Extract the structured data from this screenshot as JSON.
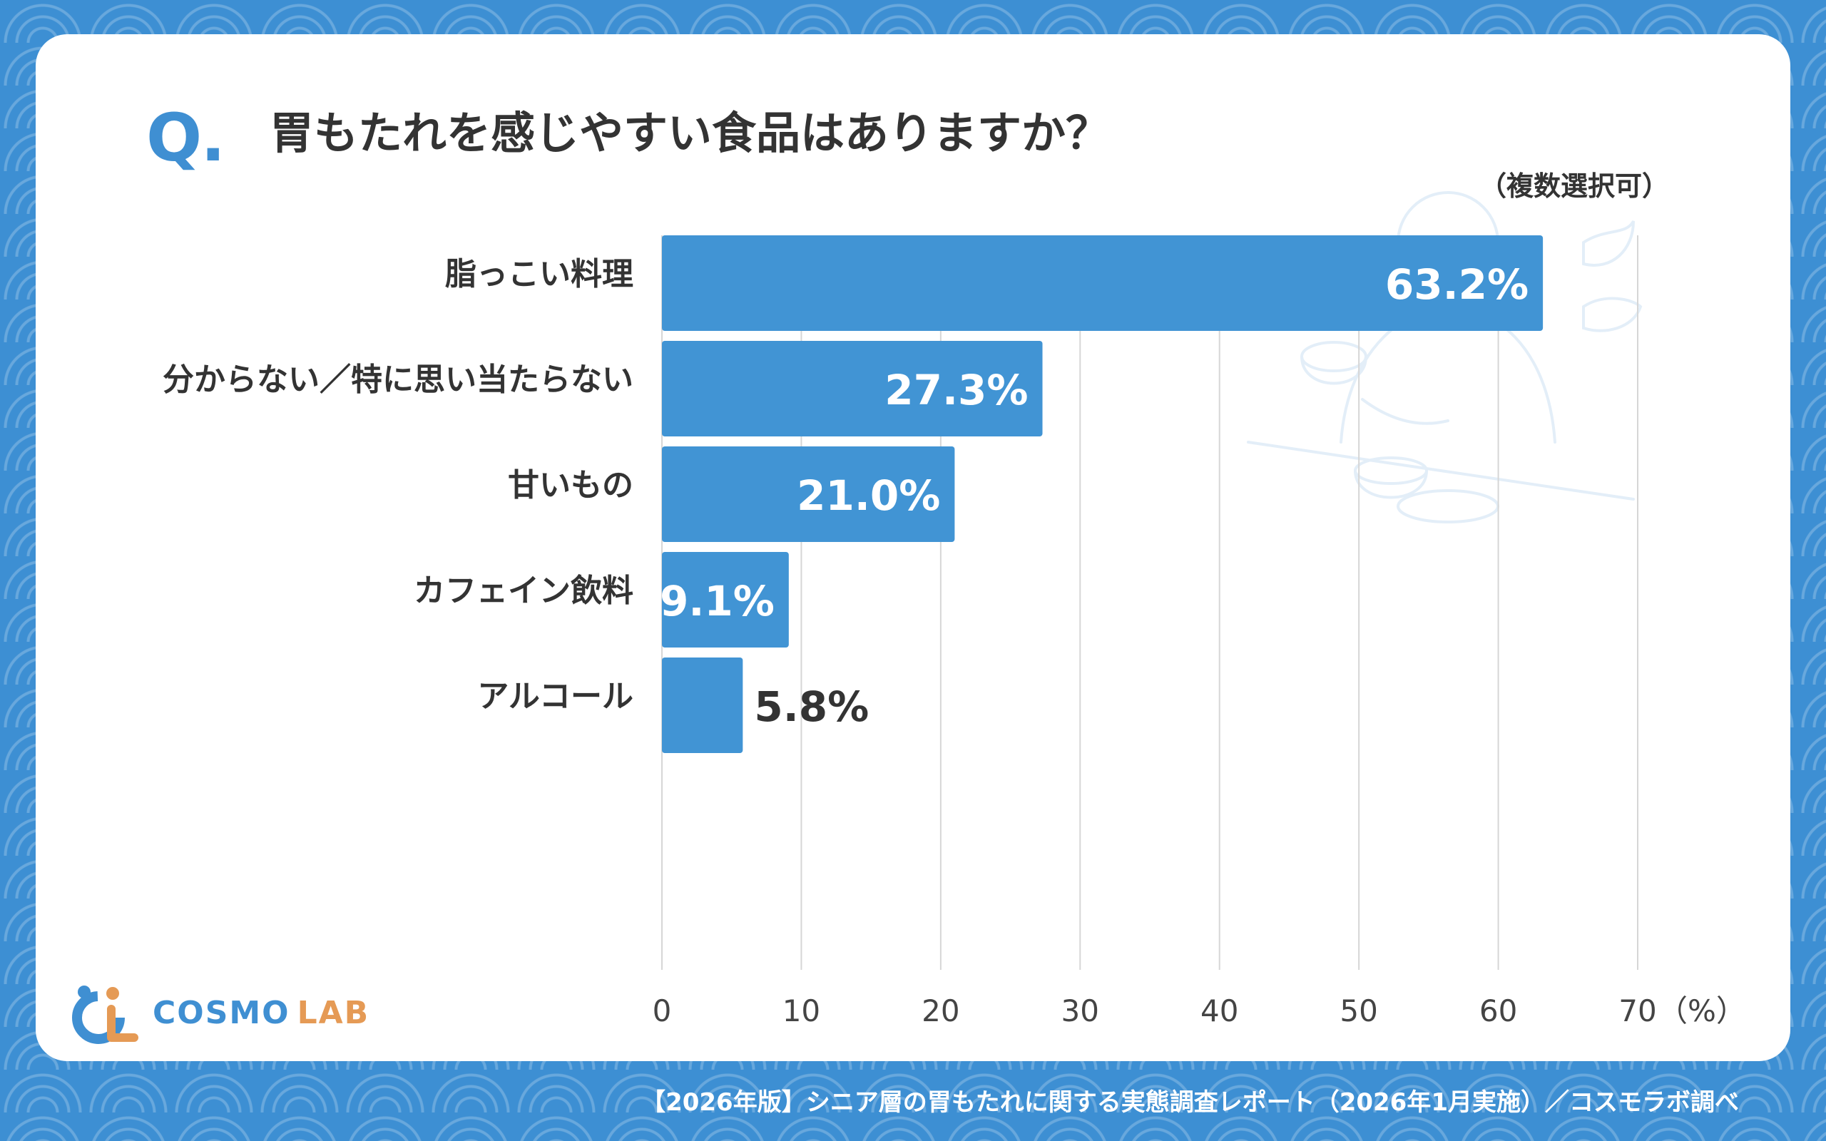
{
  "header": {
    "q_mark": "Q.",
    "question": "胃もたれを感じやすい食品はありますか？",
    "note": "（複数選択可）"
  },
  "chart_data": {
    "type": "bar",
    "orientation": "horizontal",
    "categories": [
      "脂っこい料理",
      "分からない／特に思い当たらない",
      "甘いもの",
      "カフェイン飲料",
      "アルコール"
    ],
    "values": [
      63.2,
      27.3,
      21.0,
      9.1,
      5.8
    ],
    "value_labels": [
      "63.2%",
      "27.3%",
      "21.0%",
      "9.1%",
      "5.8%"
    ],
    "xlim": [
      0,
      70
    ],
    "xticks": [
      0,
      10,
      20,
      30,
      40,
      50,
      60,
      70
    ],
    "xticklabels": [
      "0",
      "10",
      "20",
      "30",
      "40",
      "50",
      "60",
      "70"
    ],
    "xunit": "（%）",
    "grid": "vertical",
    "bar_color": "#4194d4"
  },
  "logo": {
    "name_part1": "COSMO",
    "name_part2": "LAB",
    "icon": "cosmo-lab-logo-icon"
  },
  "footer": {
    "source": "【2026年版】シニア層の胃もたれに関する実態調査レポート（2026年1月実施）／コスモラボ調べ"
  },
  "colors": {
    "background": "#3d8fd3",
    "accent": "#3f8fd2",
    "text": "#333333",
    "logo_orange": "#e59a55"
  }
}
